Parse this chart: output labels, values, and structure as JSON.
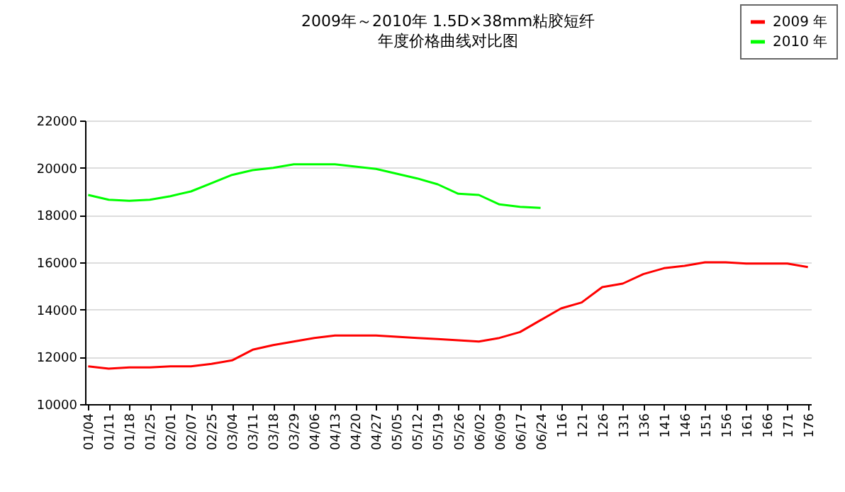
{
  "chart_data": {
    "type": "line",
    "title": "2009年～2010年  1.5D×38mm粘胶短纤",
    "subtitle": "年度价格曲线对比图",
    "categories": [
      "01/04",
      "01/11",
      "01/18",
      "01/25",
      "02/01",
      "02/07",
      "02/25",
      "03/04",
      "03/11",
      "03/18",
      "03/29",
      "04/06",
      "04/13",
      "04/20",
      "04/27",
      "05/05",
      "05/12",
      "05/19",
      "05/26",
      "06/02",
      "06/09",
      "06/17",
      "06/24",
      "116",
      "121",
      "126",
      "131",
      "136",
      "141",
      "146",
      "151",
      "156",
      "161",
      "166",
      "171",
      "176"
    ],
    "series": [
      {
        "name": "2009 年",
        "color": "#ff0000",
        "values": [
          11600,
          11500,
          11550,
          11550,
          11600,
          11600,
          11700,
          11850,
          12300,
          12500,
          12650,
          12800,
          12900,
          12900,
          12900,
          12850,
          12800,
          12750,
          12700,
          12650,
          12800,
          13050,
          13550,
          14050,
          14300,
          14950,
          15100,
          15500,
          15750,
          15850,
          16000,
          16000,
          15950,
          15950,
          15950,
          15800
        ]
      },
      {
        "name": "2010 年",
        "color": "#00ff00",
        "values": [
          18850,
          18650,
          18600,
          18650,
          18800,
          19000,
          19350,
          19700,
          19900,
          20000,
          20150,
          20150,
          20150,
          20050,
          19950,
          19750,
          19550,
          19300,
          18900,
          18850,
          18450,
          18350,
          18300,
          null,
          null,
          null,
          null,
          null,
          null,
          null,
          null,
          null,
          null,
          null,
          null,
          null
        ]
      }
    ],
    "ylim": [
      10000,
      22000
    ],
    "yticks": [
      10000,
      12000,
      14000,
      16000,
      18000,
      20000,
      22000
    ],
    "grid": "y",
    "legend": "top right",
    "marker": "none",
    "line_style": "solid"
  }
}
